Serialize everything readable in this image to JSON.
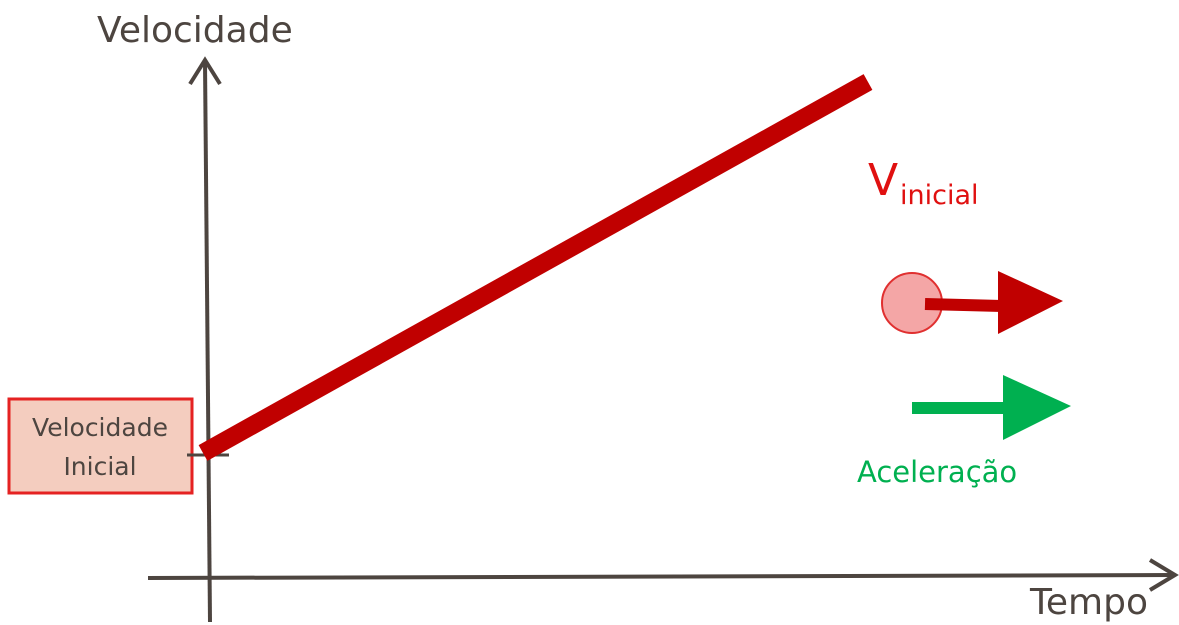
{
  "axes": {
    "y_label": "Velocidade",
    "x_label": "Tempo"
  },
  "initial_box": {
    "lines": [
      "Velocidade",
      "Inicial"
    ]
  },
  "velocity_label": {
    "symbol": "V",
    "subscript": "inicial"
  },
  "acceleration_label": "Aceleração"
}
